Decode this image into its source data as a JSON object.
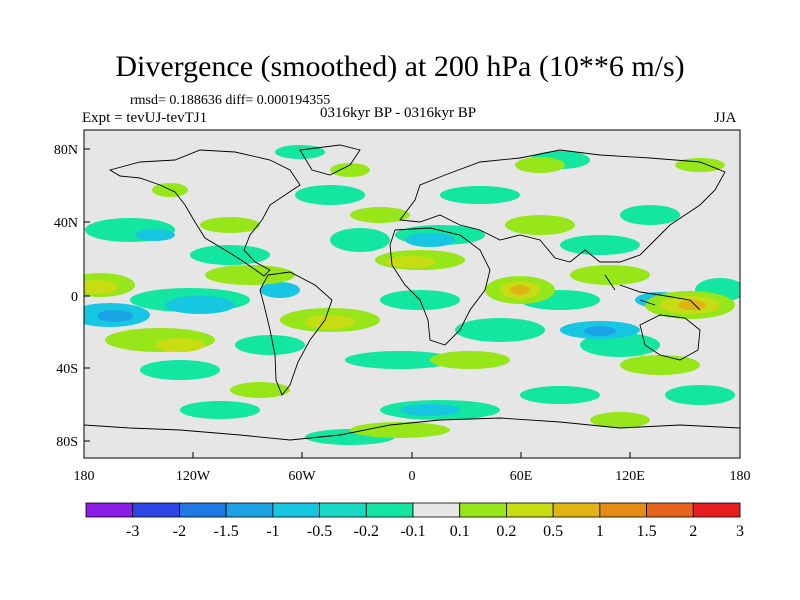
{
  "title": "Divergence (smoothed) at 200 hPa (10**6 m/s)",
  "stats": "rmsd= 0.188636 diff= 0.000194355",
  "experiment": "Expt = tevUJ-tevTJ1",
  "period": "0316kyr BP - 0316kyr BP",
  "season": "JJA",
  "lat_labels": [
    "80N",
    "40N",
    "0",
    "40S",
    "80S"
  ],
  "lon_labels": [
    "180",
    "120W",
    "60W",
    "0",
    "60E",
    "120E",
    "180"
  ],
  "colorbar": {
    "labels": [
      "-3",
      "-2",
      "-1.5",
      "-1",
      "-0.5",
      "-0.2",
      "-0.1",
      "0.1",
      "0.2",
      "0.5",
      "1",
      "1.5",
      "2",
      "3"
    ],
    "colors": [
      "#8a1ee6",
      "#2e46e6",
      "#1e78e6",
      "#1aa4e6",
      "#17c6e0",
      "#16d8c4",
      "#12e6a0",
      "#e6e6e6",
      "#96e61a",
      "#c8dc14",
      "#e0b414",
      "#e68c14",
      "#e6641e",
      "#e61e1e"
    ]
  },
  "map_colors": {
    "background": "#e6e6e6",
    "neg1": "#12e6a0",
    "neg2": "#17c6e0",
    "neg3": "#1aa4e6",
    "pos1": "#96e61a",
    "pos2": "#c8dc14",
    "pos3": "#e0b414"
  }
}
